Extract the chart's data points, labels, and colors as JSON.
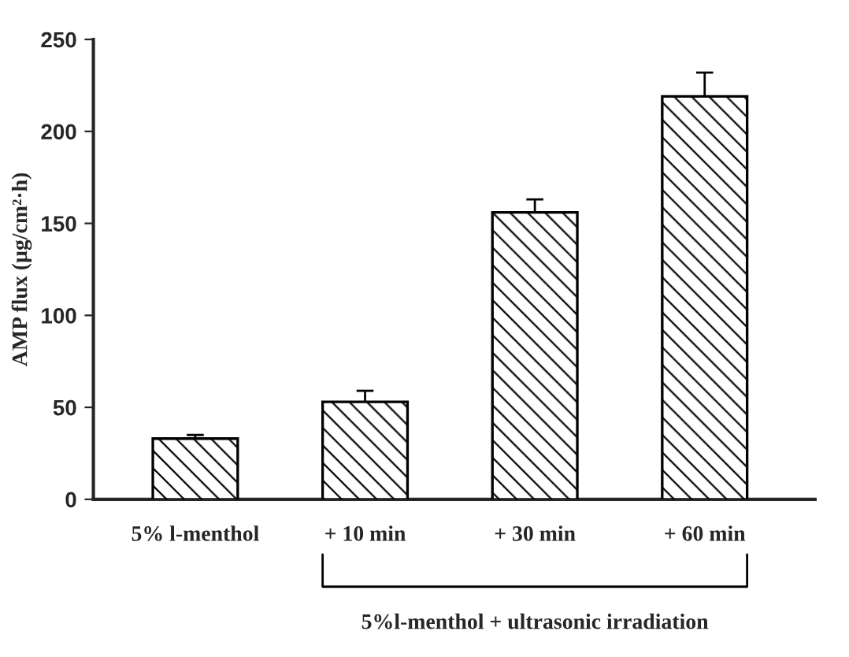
{
  "chart_data": {
    "type": "bar",
    "categories": [
      "5% l-menthol",
      "+ 10 min",
      "+ 30 min",
      "+ 60 min"
    ],
    "values": [
      33,
      53,
      156,
      219
    ],
    "errors": [
      [
        33,
        35
      ],
      [
        53,
        59
      ],
      [
        156,
        163
      ],
      [
        219,
        232
      ]
    ],
    "color": "#000000",
    "ylabel": "AMP flux (µg/cm²·h)",
    "ylim": [
      0,
      250
    ],
    "yticks": [
      0,
      50,
      100,
      150,
      200,
      250
    ],
    "annotations": [
      "5%l-menthol + ultrasonic irradiation"
    ],
    "grid": false
  }
}
